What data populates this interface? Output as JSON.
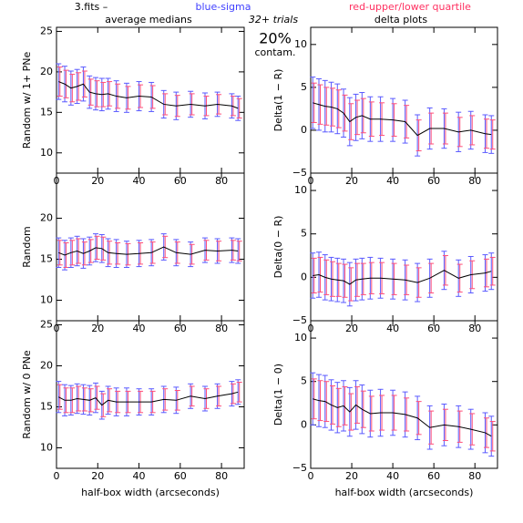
{
  "header": {
    "file": "3.fits  –",
    "blue": "blue-sigma",
    "red": "red-upper/lower quartile",
    "col_left": "average medians",
    "trials": "32+ trials",
    "col_right": "delta plots",
    "contam_pct": "20%",
    "contam": "contam."
  },
  "chart_data": [
    {
      "type": "errorbar",
      "ylabel": "Random w/ 1+ PNe",
      "x": [
        1,
        4,
        7,
        10,
        13,
        16,
        19,
        22,
        25,
        29,
        34,
        40,
        46,
        52,
        58,
        65,
        72,
        78,
        85,
        88
      ],
      "values": [
        18.8,
        18.5,
        18,
        18.2,
        18.5,
        17.5,
        17.3,
        17.2,
        17.3,
        17,
        16.8,
        17,
        16.9,
        16,
        15.8,
        16,
        15.8,
        16,
        15.8,
        15.5
      ],
      "sigma": [
        2.2,
        2.2,
        2.1,
        2.1,
        2.1,
        2,
        2,
        2,
        1.9,
        1.9,
        1.8,
        1.8,
        1.8,
        1.7,
        1.7,
        1.6,
        1.6,
        1.5,
        1.5,
        1.5
      ],
      "quartile": [
        1.8,
        1.7,
        1.7,
        1.7,
        1.6,
        1.6,
        1.6,
        1.5,
        1.5,
        1.5,
        1.4,
        1.4,
        1.4,
        1.3,
        1.3,
        1.3,
        1.2,
        1.2,
        1.2,
        1.2
      ],
      "xlim": [
        0,
        91
      ],
      "ylim": [
        7.5,
        25.5
      ],
      "xticks": [
        0,
        20,
        40,
        60,
        80
      ],
      "yticks": [
        10,
        15,
        20,
        25
      ],
      "color": "#000000",
      "sigma_color": "#5a5aff",
      "quartile_color": "#ff4f7a"
    },
    {
      "type": "errorbar",
      "ylabel": "Delta(1 − R)",
      "x": [
        1,
        4,
        7,
        10,
        13,
        16,
        19,
        22,
        25,
        29,
        34,
        40,
        46,
        52,
        58,
        65,
        72,
        78,
        85,
        88
      ],
      "values": [
        3.2,
        3,
        2.8,
        2.7,
        2.5,
        2,
        1,
        1.5,
        1.7,
        1.3,
        1.3,
        1.2,
        1,
        -0.6,
        0.2,
        0.2,
        -0.2,
        0,
        -0.4,
        -0.5
      ],
      "sigma": [
        3,
        3,
        3,
        2.9,
        2.9,
        2.8,
        2.8,
        2.7,
        2.7,
        2.6,
        2.6,
        2.5,
        2.5,
        2.4,
        2.4,
        2.3,
        2.3,
        2.2,
        2.2,
        2.2
      ],
      "quartile": [
        2.3,
        2.3,
        2.2,
        2.2,
        2.2,
        2.1,
        2.1,
        2,
        2,
        2,
        1.9,
        1.9,
        1.9,
        1.8,
        1.8,
        1.8,
        1.7,
        1.7,
        1.7,
        1.7
      ],
      "xlim": [
        0,
        91
      ],
      "ylim": [
        -5,
        12
      ],
      "xticks": [
        0,
        20,
        40,
        60,
        80
      ],
      "yticks": [
        {
          "value": -5,
          "label": "−5"
        },
        0,
        5,
        10
      ],
      "color": "#000000",
      "sigma_color": "#5a5aff",
      "quartile_color": "#ff4f7a"
    },
    {
      "type": "errorbar",
      "ylabel": "Random",
      "x": [
        1,
        4,
        7,
        10,
        13,
        16,
        19,
        22,
        25,
        29,
        34,
        40,
        46,
        52,
        58,
        65,
        72,
        78,
        85,
        88
      ],
      "values": [
        15.8,
        15.5,
        15.8,
        16,
        15.7,
        16,
        16.4,
        16.3,
        15.8,
        15.7,
        15.6,
        15.7,
        15.8,
        16.5,
        15.8,
        15.6,
        16.1,
        16,
        16.1,
        16
      ],
      "sigma": [
        1.8,
        1.8,
        1.8,
        1.8,
        1.8,
        1.7,
        1.7,
        1.7,
        1.7,
        1.7,
        1.6,
        1.6,
        1.6,
        1.6,
        1.6,
        1.5,
        1.5,
        1.5,
        1.5,
        1.5
      ],
      "quartile": [
        1.5,
        1.5,
        1.5,
        1.5,
        1.4,
        1.4,
        1.4,
        1.4,
        1.4,
        1.3,
        1.3,
        1.3,
        1.3,
        1.3,
        1.3,
        1.2,
        1.2,
        1.2,
        1.2,
        1.2
      ],
      "xlim": [
        0,
        91
      ],
      "ylim": [
        7.5,
        25.5
      ],
      "xticks": [
        0,
        20,
        40,
        60,
        80
      ],
      "yticks": [
        10,
        15,
        20
      ],
      "color": "#000000",
      "sigma_color": "#5a5aff",
      "quartile_color": "#ff4f7a"
    },
    {
      "type": "errorbar",
      "ylabel": "Delta(0 − R)",
      "x": [
        1,
        4,
        7,
        10,
        13,
        16,
        19,
        22,
        25,
        29,
        34,
        40,
        46,
        52,
        58,
        65,
        72,
        78,
        85,
        88
      ],
      "values": [
        0.2,
        0.3,
        0,
        -0.2,
        -0.3,
        -0.4,
        -0.8,
        -0.3,
        -0.2,
        -0.1,
        -0.1,
        -0.2,
        -0.3,
        -0.6,
        -0.1,
        0.8,
        -0.1,
        0.3,
        0.5,
        0.7
      ],
      "sigma": [
        2.6,
        2.6,
        2.6,
        2.5,
        2.5,
        2.5,
        2.5,
        2.4,
        2.4,
        2.4,
        2.3,
        2.3,
        2.3,
        2.2,
        2.2,
        2.2,
        2.1,
        2.1,
        2.1,
        2.1
      ],
      "quartile": [
        2,
        2,
        2,
        2,
        1.9,
        1.9,
        1.9,
        1.9,
        1.8,
        1.8,
        1.8,
        1.8,
        1.7,
        1.7,
        1.7,
        1.7,
        1.6,
        1.6,
        1.6,
        1.6
      ],
      "xlim": [
        0,
        91
      ],
      "ylim": [
        -5,
        12
      ],
      "xticks": [
        0,
        20,
        40,
        60,
        80
      ],
      "yticks": [
        {
          "value": -5,
          "label": "−5"
        },
        0,
        5,
        10
      ],
      "color": "#000000",
      "sigma_color": "#5a5aff",
      "quartile_color": "#ff4f7a"
    },
    {
      "type": "errorbar",
      "ylabel": "Random w/ 0 PNe",
      "xlabel": "half-box width (arcseconds)",
      "x": [
        1,
        4,
        7,
        10,
        13,
        16,
        19,
        22,
        25,
        29,
        34,
        40,
        46,
        52,
        58,
        65,
        72,
        78,
        85,
        88
      ],
      "values": [
        16.2,
        15.8,
        15.8,
        16,
        15.9,
        15.8,
        16.1,
        15.2,
        15.8,
        15.6,
        15.6,
        15.6,
        15.6,
        15.9,
        15.8,
        16.3,
        16,
        16.3,
        16.6,
        16.8
      ],
      "sigma": [
        1.9,
        1.9,
        1.8,
        1.8,
        1.8,
        1.8,
        1.8,
        1.7,
        1.7,
        1.7,
        1.7,
        1.6,
        1.6,
        1.6,
        1.6,
        1.5,
        1.5,
        1.5,
        1.5,
        1.5
      ],
      "quartile": [
        1.5,
        1.5,
        1.5,
        1.5,
        1.4,
        1.4,
        1.4,
        1.4,
        1.4,
        1.3,
        1.3,
        1.3,
        1.3,
        1.3,
        1.2,
        1.2,
        1.2,
        1.2,
        1.2,
        1.2
      ],
      "xlim": [
        0,
        91
      ],
      "ylim": [
        7.5,
        25.5
      ],
      "xticks": [
        0,
        20,
        40,
        60,
        80
      ],
      "yticks": [
        10,
        15,
        20,
        25
      ],
      "color": "#000000",
      "sigma_color": "#5a5aff",
      "quartile_color": "#ff4f7a"
    },
    {
      "type": "errorbar",
      "ylabel": "Delta(1 − 0)",
      "xlabel": "half-box width (arcseconds)",
      "x": [
        1,
        4,
        7,
        10,
        13,
        16,
        19,
        22,
        25,
        29,
        34,
        40,
        46,
        52,
        58,
        65,
        72,
        78,
        85,
        88
      ],
      "values": [
        3,
        2.8,
        2.7,
        2.3,
        2,
        2.2,
        1.5,
        2.3,
        1.8,
        1.3,
        1.4,
        1.4,
        1.2,
        0.8,
        -0.3,
        0,
        -0.2,
        -0.5,
        -0.9,
        -1.3
      ],
      "sigma": [
        3,
        3,
        3,
        2.9,
        2.9,
        2.9,
        2.8,
        2.8,
        2.8,
        2.7,
        2.7,
        2.6,
        2.6,
        2.5,
        2.5,
        2.4,
        2.4,
        2.3,
        2.3,
        2.3
      ],
      "quartile": [
        2.3,
        2.3,
        2.3,
        2.2,
        2.2,
        2.2,
        2.1,
        2.1,
        2.1,
        2,
        2,
        2,
        1.9,
        1.9,
        1.9,
        1.8,
        1.8,
        1.8,
        1.7,
        1.7
      ],
      "xlim": [
        0,
        91
      ],
      "ylim": [
        -5,
        12
      ],
      "xticks": [
        0,
        20,
        40,
        60,
        80
      ],
      "yticks": [
        {
          "value": -5,
          "label": "−5"
        },
        0,
        5,
        10
      ],
      "color": "#000000",
      "sigma_color": "#5a5aff",
      "quartile_color": "#ff4f7a"
    }
  ]
}
